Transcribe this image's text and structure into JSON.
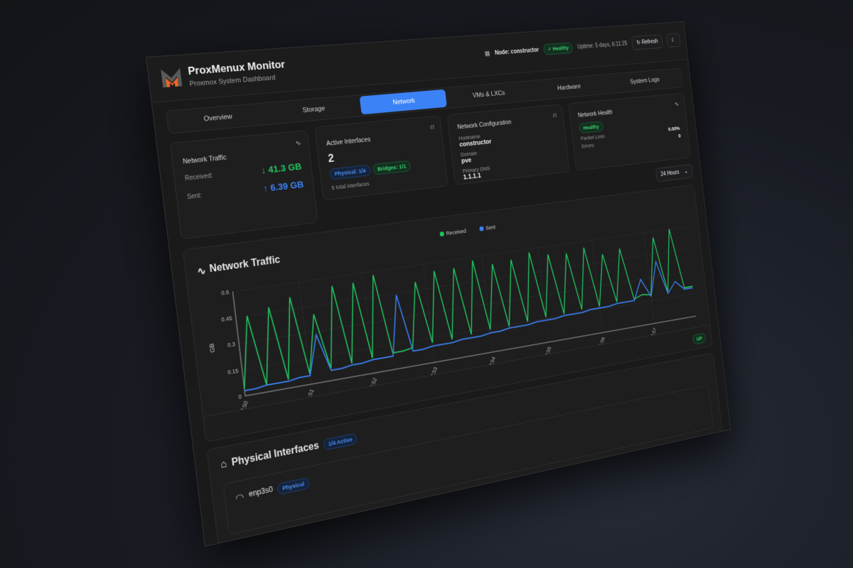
{
  "app": {
    "title": "ProxMenux Monitor",
    "subtitle": "Proxmox System Dashboard"
  },
  "header": {
    "node_label": "Node: constructor",
    "status": "Healthy",
    "uptime": "Uptime: 5 days, 6:11:25",
    "refresh_label": "Refresh",
    "icons": {
      "node": "server-icon",
      "status": "check-circle-icon",
      "refresh": "refresh-icon",
      "theme": "moon-icon"
    }
  },
  "tabs": [
    {
      "label": "Overview"
    },
    {
      "label": "Storage"
    },
    {
      "label": "Network",
      "active": true
    },
    {
      "label": "VMs & LXCs"
    },
    {
      "label": "Hardware"
    },
    {
      "label": "System Logs"
    }
  ],
  "cards": {
    "traffic": {
      "title": "Network Traffic",
      "received_label": "Received:",
      "received_value": "↓ 41.3 GB",
      "sent_label": "Sent:",
      "sent_value": "↑ 6.39 GB"
    },
    "interfaces": {
      "title": "Active Interfaces",
      "count": "2",
      "physical_badge": "Physical: 1/4",
      "bridges_badge": "Bridges: 1/1",
      "total": "5 total interfaces"
    },
    "config": {
      "title": "Network Configuration",
      "hostname_label": "Hostname",
      "hostname": "constructor",
      "domain_label": "Domain",
      "domain": "pve",
      "dns_label": "Primary DNS",
      "dns": "1.1.1.1"
    },
    "health": {
      "title": "Network Health",
      "status": "Healthy",
      "packet_loss_label": "Packet Loss:",
      "packet_loss": "0.00%",
      "errors_label": "Errors:",
      "errors": "0"
    }
  },
  "time_range": {
    "selected": "24 Hours"
  },
  "chart_section": {
    "title": "Network Traffic"
  },
  "interface_card": {
    "status": "UP"
  },
  "physical": {
    "title": "Physical Interfaces",
    "badge": "1/4 Active",
    "items": [
      {
        "name": "enp3s0",
        "type": "Physical"
      }
    ]
  },
  "colors": {
    "received": "#22c55e",
    "sent": "#3b82f6",
    "accent": "#3b82f6"
  },
  "chart_data": {
    "type": "line",
    "ylabel": "GB",
    "ylim": [
      0,
      0.6
    ],
    "yticks": [
      "0",
      "0.15",
      "0.3",
      "0.45",
      "0.6"
    ],
    "grid": true,
    "legend": "top-center",
    "x": [
      "22:50",
      "23:20",
      "23:50",
      "00:20",
      "00:50",
      "01:20",
      "01:50",
      "02:20",
      "02:50",
      "03:20",
      "03:50",
      "04:20",
      "04:50",
      "05:20",
      "05:50",
      "06:20",
      "06:50",
      "07:20",
      "07:50",
      "08:20",
      "08:50",
      "09:20",
      "09:50",
      "10:20",
      "10:50",
      "11:20",
      "11:50",
      "12:20",
      "12:50",
      "13:20",
      "13:50",
      "14:20",
      "14:50",
      "15:20",
      "15:50",
      "16:20",
      "16:50",
      "17:20",
      "17:50",
      "18:20",
      "18:50",
      "19:20",
      "19:50",
      "20:20",
      "20:50",
      "21:20",
      "21:50",
      "22:20"
    ],
    "xticks": [
      "22:50",
      "01:51",
      "04:52",
      "07:53",
      "10:54",
      "13:55",
      "16:56",
      "19:57"
    ],
    "series": [
      {
        "name": "Received",
        "color": "#22c55e",
        "values": [
          0.04,
          0.45,
          0.04,
          0.48,
          0.05,
          0.52,
          0.06,
          0.4,
          0.07,
          0.55,
          0.08,
          0.55,
          0.09,
          0.58,
          0.1,
          0.1,
          0.11,
          0.5,
          0.12,
          0.55,
          0.12,
          0.55,
          0.13,
          0.58,
          0.14,
          0.54,
          0.14,
          0.55,
          0.15,
          0.58,
          0.16,
          0.55,
          0.16,
          0.54,
          0.17,
          0.56,
          0.17,
          0.5,
          0.18,
          0.52,
          0.18,
          0.2,
          0.19,
          0.56,
          0.19,
          0.6,
          0.2,
          0.2
        ]
      },
      {
        "name": "Sent",
        "color": "#3b82f6",
        "values": [
          0.03,
          0.03,
          0.04,
          0.04,
          0.04,
          0.05,
          0.05,
          0.28,
          0.06,
          0.06,
          0.07,
          0.07,
          0.08,
          0.08,
          0.08,
          0.44,
          0.09,
          0.09,
          0.1,
          0.1,
          0.1,
          0.11,
          0.11,
          0.11,
          0.12,
          0.12,
          0.13,
          0.13,
          0.13,
          0.14,
          0.14,
          0.14,
          0.15,
          0.15,
          0.15,
          0.16,
          0.16,
          0.16,
          0.17,
          0.17,
          0.17,
          0.3,
          0.18,
          0.4,
          0.18,
          0.25,
          0.19,
          0.19
        ]
      }
    ]
  }
}
